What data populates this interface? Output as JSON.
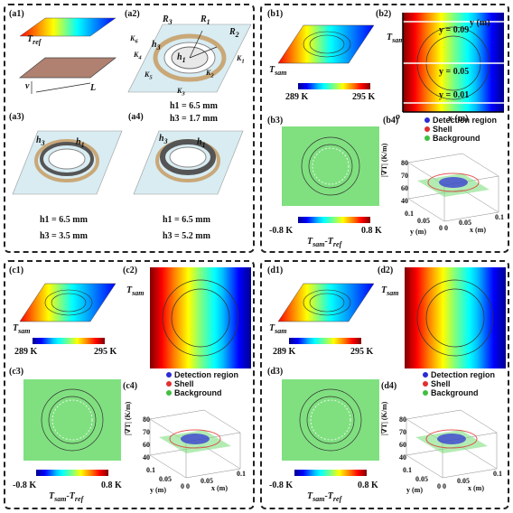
{
  "panels": {
    "a": {
      "labels": [
        "(a1)",
        "(a2)",
        "(a3)",
        "(a4)"
      ],
      "t_ref": "T",
      "t_ref_sub": "ref",
      "dims": {
        "v": "v",
        "L": "L"
      },
      "a2_symbols": [
        "R3",
        "R1",
        "R2",
        "h3",
        "h1",
        "K1",
        "K2",
        "K3",
        "K4",
        "K5",
        "K6"
      ],
      "a2_values": [
        "h1 = 6.5 mm",
        "h3 = 1.7 mm"
      ],
      "a3_symbols": [
        "h3",
        "h1"
      ],
      "a3_values": [
        "h1 = 6.5 mm",
        "h3 = 3.5 mm"
      ],
      "a4_symbols": [
        "h3",
        "h1"
      ],
      "a4_values": [
        "h1 = 6.5 mm",
        "h3 = 5.2 mm"
      ]
    },
    "b": {
      "labels": [
        "(b1)",
        "(b2)",
        "(b3)",
        "(b4)"
      ],
      "t_sam": "T",
      "t_sam_sub": "sam",
      "colorbar_min": "289 K",
      "colorbar_max": "295 K",
      "b2_axis_y": "y (m)",
      "b2_axis_x": "x (m)",
      "b2_origin": "o",
      "b2_lines": [
        "y = 0.09",
        "y = 0.05",
        "y = 0.01"
      ],
      "b3_bar_min": "-0.8 K",
      "b3_bar_max": "0.8 K",
      "b3_bar_label": "T",
      "b3_bar_label_sub1": "sam",
      "b3_bar_label_mid": "-T",
      "b3_bar_label_sub2": "ref",
      "legend": [
        "Detection region",
        "Shell",
        "Background"
      ],
      "z_label": "|∇T| (K/m)",
      "z_ticks": [
        "80",
        "70",
        "60",
        "40"
      ],
      "y_label": "y (m)",
      "x_label": "x (m)",
      "y_ticks": [
        "0.1",
        "0.05",
        "0 0"
      ],
      "x_ticks": [
        "0.05",
        "0.1"
      ]
    },
    "c": {
      "labels": [
        "(c1)",
        "(c2)",
        "(c3)",
        "(c4)"
      ],
      "t_sam": "T",
      "t_sam_sub": "sam",
      "colorbar_min": "289 K",
      "colorbar_max": "295 K",
      "bar_min": "-0.8 K",
      "bar_max": "0.8 K",
      "legend": [
        "Detection region",
        "Shell",
        "Background"
      ],
      "z_label": "|∇T| (K/m)",
      "z_ticks": [
        "80",
        "70",
        "60",
        "40"
      ],
      "y_label": "y (m)",
      "x_label": "x (m)",
      "y_ticks": [
        "0.1",
        "0.05",
        "0 0"
      ],
      "x_ticks": [
        "0.05",
        "0.1"
      ]
    },
    "d": {
      "labels": [
        "(d1)",
        "(d2)",
        "(d3)",
        "(d4)"
      ],
      "t_sam": "T",
      "t_sam_sub": "sam",
      "colorbar_min": "289 K",
      "colorbar_max": "295 K",
      "bar_min": "-0.8 K",
      "bar_max": "0.8 K",
      "legend": [
        "Detection region",
        "Shell",
        "Background"
      ],
      "z_label": "|∇T| (K/m)",
      "z_ticks": [
        "80",
        "70",
        "60",
        "40"
      ],
      "y_label": "y (m)",
      "x_label": "x (m)",
      "y_ticks": [
        "0.1",
        "0.05",
        "0 0"
      ],
      "x_ticks": [
        "0.05",
        "0.1"
      ]
    }
  },
  "colors": {
    "detection": "#2b2bd6",
    "shell": "#e03030",
    "background": "#40c040",
    "plate": "#d8ecf2",
    "ring_gold": "#d2b48c"
  }
}
